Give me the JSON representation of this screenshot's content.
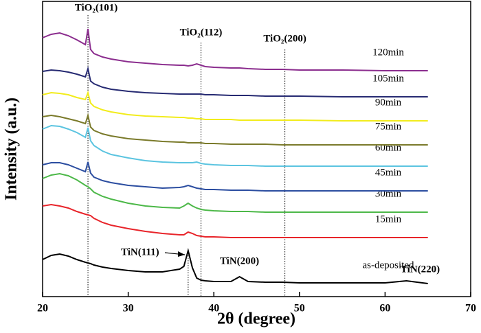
{
  "chart_data": {
    "type": "line",
    "x_label": "2θ (degree)",
    "y_label": "Intensity (a.u.)",
    "xlim": [
      20,
      70
    ],
    "xticks": [
      20,
      30,
      40,
      50,
      60,
      70
    ],
    "ylim": [
      0,
      430
    ],
    "x": [
      20,
      21,
      22,
      23,
      24,
      25,
      25.3,
      25.6,
      26,
      27,
      28,
      30,
      32,
      34,
      36,
      36.5,
      37,
      37.5,
      38,
      38.5,
      39,
      40,
      42,
      43,
      44,
      46,
      48,
      50,
      55,
      60,
      62.5,
      65
    ],
    "series": [
      {
        "name": "as-deposited",
        "color": "#000000",
        "values": [
          54,
          60,
          62,
          59,
          54,
          50,
          49,
          48,
          46,
          43,
          41,
          38,
          36,
          36,
          40,
          44,
          67,
          42,
          27,
          24,
          23,
          22,
          22,
          29,
          22,
          21,
          21,
          20,
          20,
          20,
          23,
          19
        ]
      },
      {
        "name": "15min",
        "color": "#e8242a",
        "values": [
          132,
          134,
          132,
          129,
          124,
          120,
          119,
          118,
          114,
          108,
          104,
          99,
          95,
          92,
          90,
          90,
          94,
          92,
          89,
          88,
          87,
          87,
          86,
          86,
          86,
          86,
          86,
          86,
          86,
          86,
          86,
          86
        ]
      },
      {
        "name": "30min",
        "color": "#4cb848",
        "values": [
          172,
          177,
          179,
          176,
          170,
          162,
          160,
          157,
          152,
          146,
          142,
          136,
          132,
          130,
          129,
          132,
          136,
          132,
          129,
          127,
          126,
          125,
          124,
          124,
          124,
          123,
          123,
          123,
          123,
          123,
          123,
          123
        ]
      },
      {
        "name": "45min",
        "color": "#2b4da0",
        "values": [
          192,
          195,
          195,
          192,
          187,
          182,
          196,
          180,
          174,
          169,
          166,
          162,
          160,
          158,
          159,
          160,
          162,
          160,
          158,
          157,
          156,
          156,
          155,
          155,
          155,
          154,
          154,
          154,
          154,
          154,
          154,
          154
        ]
      },
      {
        "name": "60min",
        "color": "#5bc4e0",
        "values": [
          244,
          249,
          248,
          244,
          239,
          232,
          246,
          227,
          220,
          212,
          207,
          202,
          198,
          196,
          195,
          195,
          195,
          195,
          196,
          194,
          193,
          192,
          191,
          191,
          191,
          190,
          190,
          190,
          190,
          190,
          190,
          190
        ]
      },
      {
        "name": "75min",
        "color": "#7a7a2a",
        "values": [
          262,
          264,
          262,
          259,
          256,
          252,
          264,
          247,
          242,
          237,
          234,
          230,
          228,
          226,
          225,
          225,
          224,
          224,
          224,
          224,
          223,
          223,
          222,
          222,
          222,
          222,
          221,
          221,
          221,
          221,
          221,
          221
        ]
      },
      {
        "name": "90min",
        "color": "#f2ec1c",
        "values": [
          294,
          297,
          296,
          294,
          290,
          287,
          297,
          282,
          277,
          272,
          269,
          265,
          263,
          262,
          261,
          261,
          260,
          260,
          259,
          259,
          258,
          258,
          258,
          257,
          257,
          257,
          257,
          257,
          256,
          256,
          256,
          256
        ]
      },
      {
        "name": "105min",
        "color": "#262a72",
        "values": [
          328,
          330,
          329,
          327,
          324,
          320,
          332,
          314,
          310,
          305,
          302,
          299,
          297,
          296,
          295,
          295,
          295,
          295,
          295,
          295,
          294,
          294,
          293,
          293,
          293,
          292,
          292,
          292,
          291,
          291,
          291,
          291
        ]
      },
      {
        "name": "120min",
        "color": "#8b2d8e",
        "values": [
          377,
          382,
          384,
          380,
          374,
          367,
          390,
          360,
          354,
          349,
          346,
          342,
          340,
          338,
          337,
          337,
          336,
          337,
          339,
          337,
          335,
          334,
          333,
          333,
          332,
          331,
          331,
          330,
          330,
          329,
          329,
          329
        ]
      }
    ],
    "peaks": [
      {
        "label": "TiO₂(101)",
        "x": 25.3,
        "line": true
      },
      {
        "label": "TiO₂(112)",
        "x": 38.5,
        "line": true
      },
      {
        "label": "TiO₂(200)",
        "x": 48.3,
        "line": true
      },
      {
        "label": "TiN(111)",
        "x": 37,
        "line": true
      },
      {
        "label": "TiN(200)",
        "x": 43,
        "line": false
      },
      {
        "label": "TiN(220)",
        "x": 62.5,
        "line": false
      }
    ]
  }
}
